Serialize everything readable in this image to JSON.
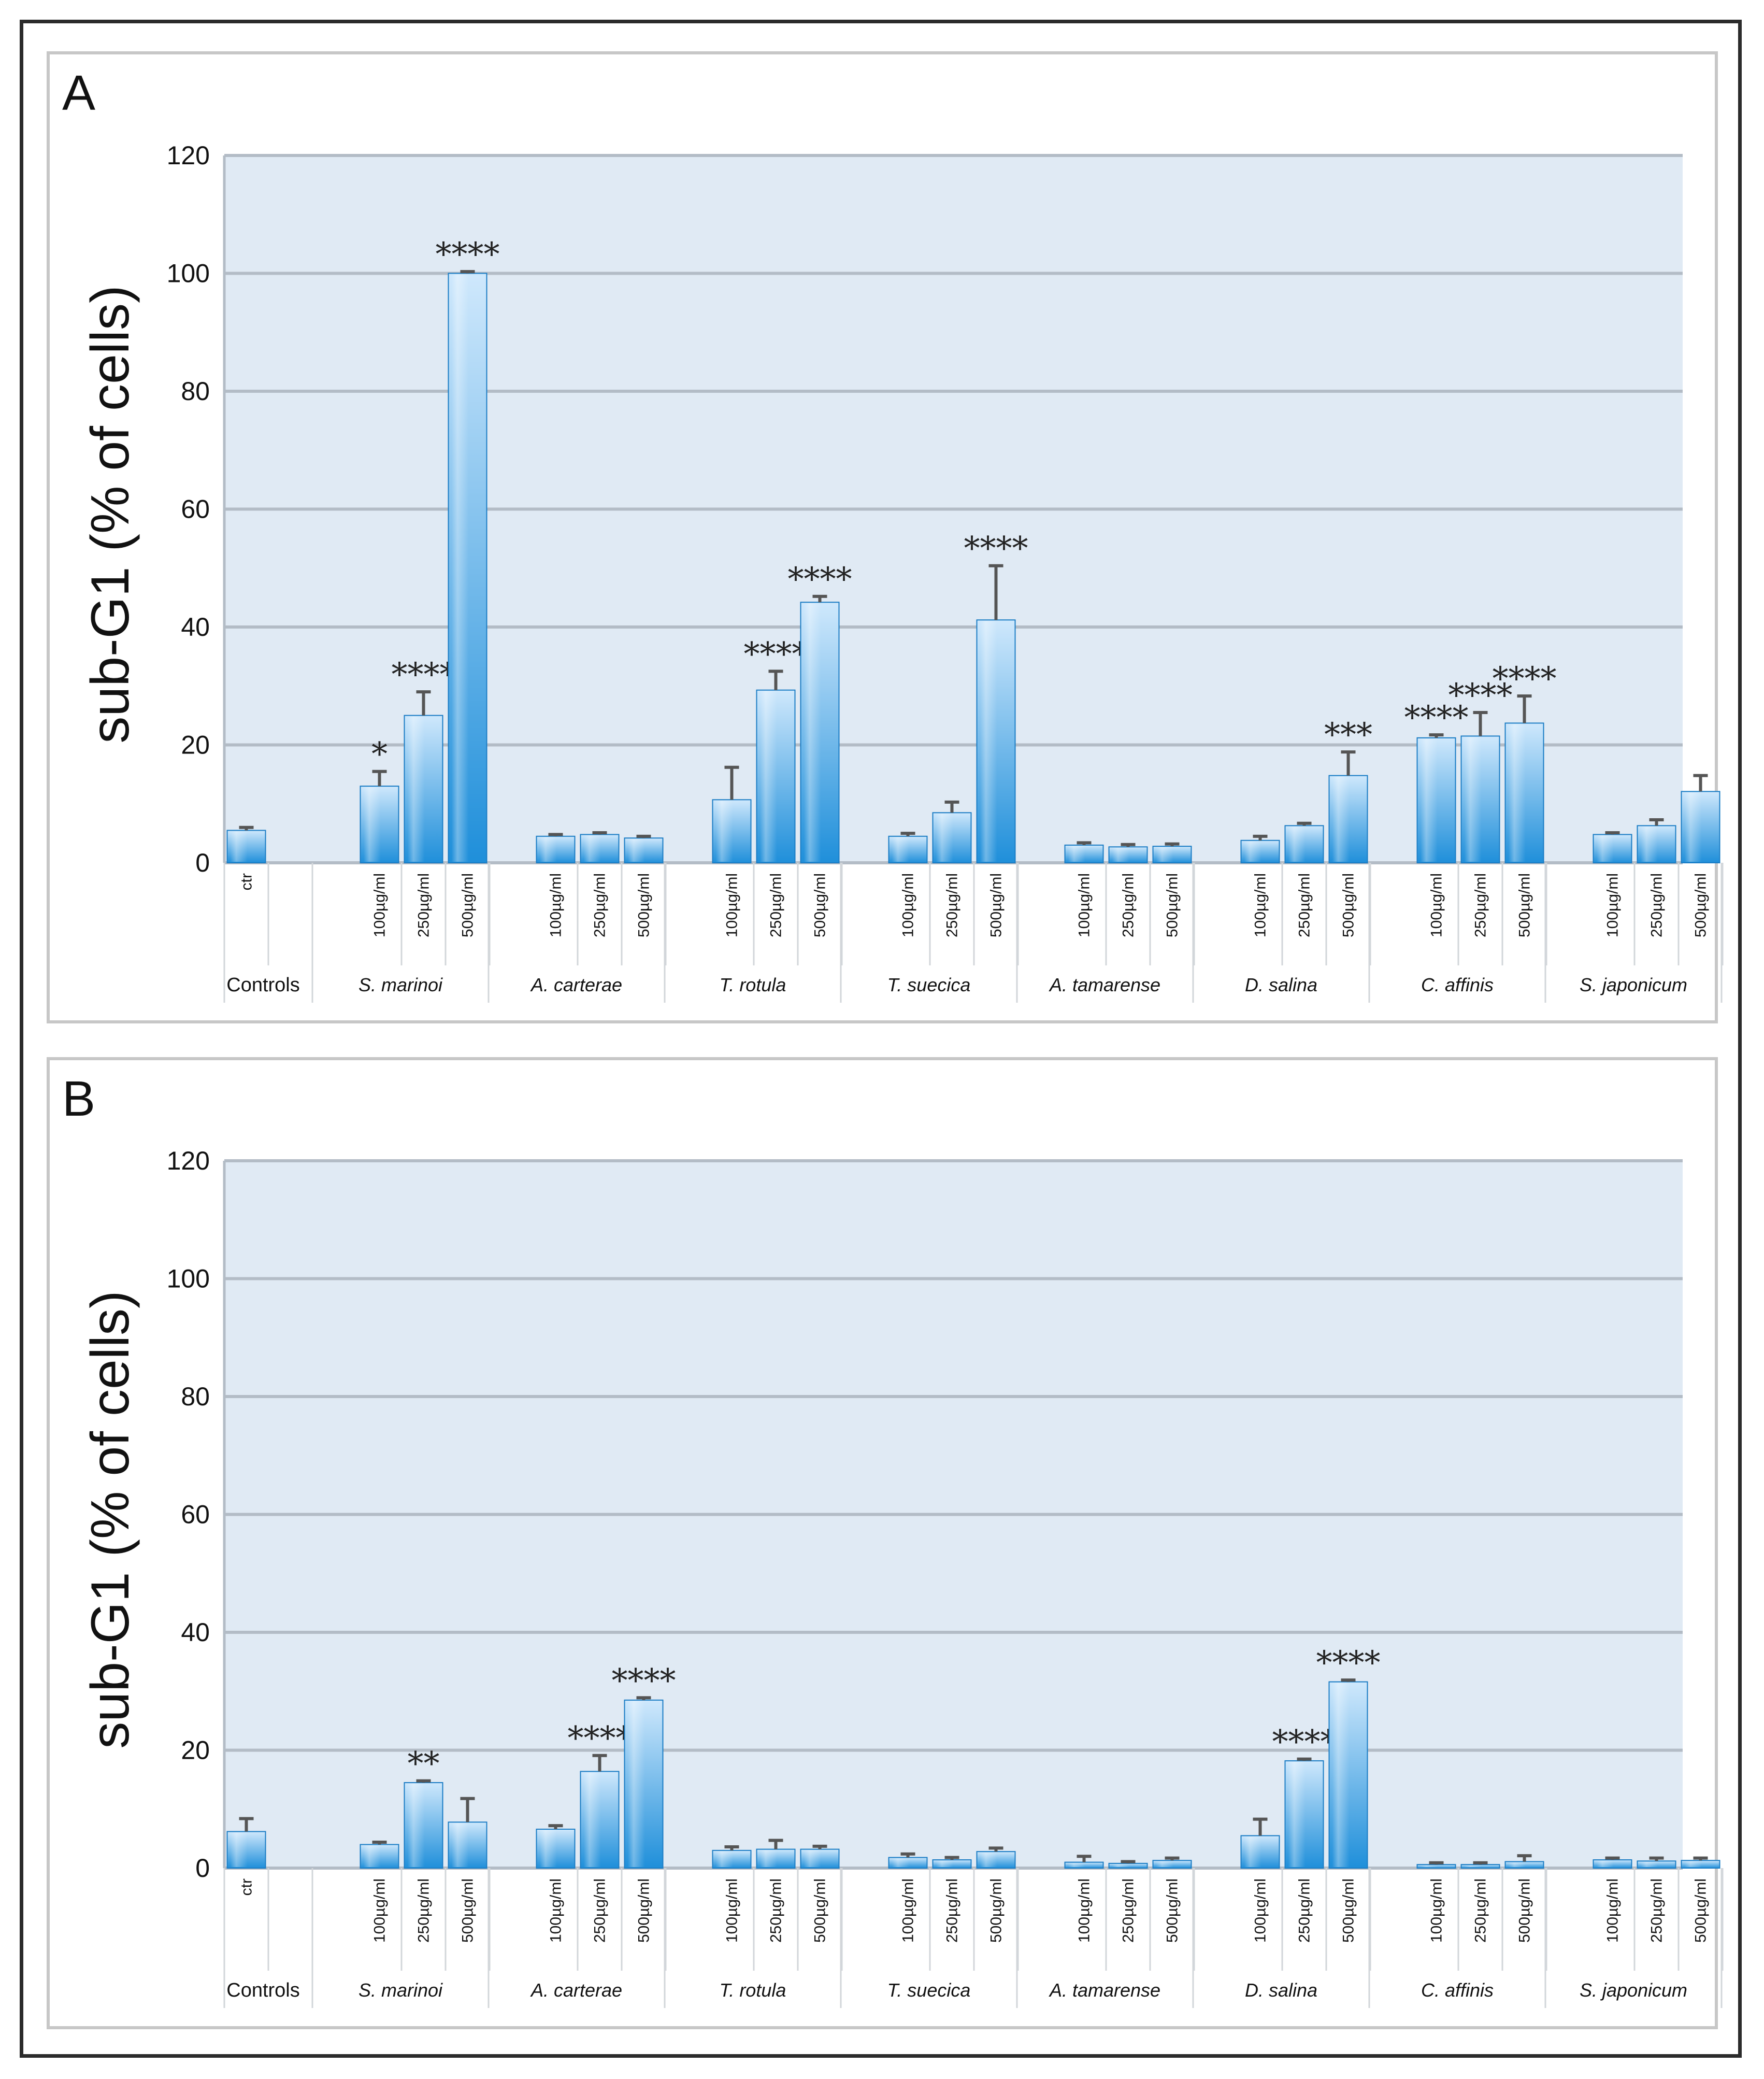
{
  "colors": {
    "plot_bg": "#e0eaf4",
    "grid": "#b3bcc6",
    "bar_light": "#cfe8fc",
    "bar_dark": "#1f8fda",
    "error_bar": "#555555",
    "panel_border": "#c7c7c7"
  },
  "chart_data": [
    {
      "panel": "A",
      "type": "bar",
      "ylabel": "sub-G1 (% of cells)",
      "ylim": [
        0,
        120
      ],
      "yticks": [
        "0",
        "20",
        "40",
        "60",
        "80",
        "100",
        "120"
      ],
      "grid": true,
      "groups": [
        {
          "name": "Controls",
          "doses": [
            "ctr"
          ],
          "values": [
            5.5
          ],
          "errors": [
            0.5
          ],
          "sig": [
            ""
          ]
        },
        {
          "name": "S. marinoi",
          "doses": [
            "100µg/ml",
            "250µg/ml",
            "500µg/ml"
          ],
          "values": [
            13,
            25,
            100
          ],
          "errors": [
            2.5,
            4,
            0.3
          ],
          "sig": [
            "*",
            "****",
            "****"
          ]
        },
        {
          "name": "A. carterae",
          "doses": [
            "100µg/ml",
            "250µg/ml",
            "500µg/ml"
          ],
          "values": [
            4.5,
            4.8,
            4.2
          ],
          "errors": [
            0.3,
            0.3,
            0.3
          ],
          "sig": [
            "",
            "",
            ""
          ]
        },
        {
          "name": "T. rotula",
          "doses": [
            "100µg/ml",
            "250µg/ml",
            "500µg/ml"
          ],
          "values": [
            10.7,
            29.3,
            44.2
          ],
          "errors": [
            5.5,
            3.2,
            1
          ],
          "sig": [
            "",
            "****",
            "****"
          ]
        },
        {
          "name": "T. suecica",
          "doses": [
            "100µg/ml",
            "250µg/ml",
            "500µg/ml"
          ],
          "values": [
            4.5,
            8.5,
            41.2
          ],
          "errors": [
            0.5,
            1.8,
            9.2
          ],
          "sig": [
            "",
            "",
            "****"
          ]
        },
        {
          "name": "A. tamarense",
          "doses": [
            "100µg/ml",
            "250µg/ml",
            "500µg/ml"
          ],
          "values": [
            3,
            2.7,
            2.8
          ],
          "errors": [
            0.4,
            0.4,
            0.4
          ],
          "sig": [
            "",
            "",
            ""
          ]
        },
        {
          "name": "D. salina",
          "doses": [
            "100µg/ml",
            "250µg/ml",
            "500µg/ml"
          ],
          "values": [
            3.8,
            6.3,
            14.8
          ],
          "errors": [
            0.7,
            0.4,
            4
          ],
          "sig": [
            "",
            "",
            "***"
          ]
        },
        {
          "name": "C. affinis",
          "doses": [
            "100µg/ml",
            "250µg/ml",
            "500µg/ml"
          ],
          "values": [
            21.2,
            21.5,
            23.7
          ],
          "errors": [
            0.5,
            4,
            4.6
          ],
          "sig": [
            "****",
            "****",
            "****"
          ]
        },
        {
          "name": "S. japonicum",
          "doses": [
            "100µg/ml",
            "250µg/ml",
            "500µg/ml"
          ],
          "values": [
            4.8,
            6.3,
            12.1
          ],
          "errors": [
            0.3,
            1,
            2.7
          ],
          "sig": [
            "",
            "",
            ""
          ]
        }
      ]
    },
    {
      "panel": "B",
      "type": "bar",
      "ylabel": "sub-G1 (% of cells)",
      "ylim": [
        0,
        120
      ],
      "yticks": [
        "0",
        "20",
        "40",
        "60",
        "80",
        "100",
        "120"
      ],
      "grid": true,
      "groups": [
        {
          "name": "Controls",
          "doses": [
            "ctr"
          ],
          "values": [
            6.2
          ],
          "errors": [
            2.2
          ],
          "sig": [
            ""
          ]
        },
        {
          "name": "S. marinoi",
          "doses": [
            "100µg/ml",
            "250µg/ml",
            "500µg/ml"
          ],
          "values": [
            4,
            14.5,
            7.8
          ],
          "errors": [
            0.4,
            0.3,
            4
          ],
          "sig": [
            "",
            "**",
            ""
          ]
        },
        {
          "name": "A. carterae",
          "doses": [
            "100µg/ml",
            "250µg/ml",
            "500µg/ml"
          ],
          "values": [
            6.6,
            16.4,
            28.5
          ],
          "errors": [
            0.6,
            2.7,
            0.4
          ],
          "sig": [
            "",
            "****",
            "****"
          ]
        },
        {
          "name": "T. rotula",
          "doses": [
            "100µg/ml",
            "250µg/ml",
            "500µg/ml"
          ],
          "values": [
            3,
            3.2,
            3.2
          ],
          "errors": [
            0.6,
            1.5,
            0.5
          ],
          "sig": [
            "",
            "",
            ""
          ]
        },
        {
          "name": "T. suecica",
          "doses": [
            "100µg/ml",
            "250µg/ml",
            "500µg/ml"
          ],
          "values": [
            1.8,
            1.4,
            2.8
          ],
          "errors": [
            0.6,
            0.4,
            0.6
          ],
          "sig": [
            "",
            "",
            ""
          ]
        },
        {
          "name": "A. tamarense",
          "doses": [
            "100µg/ml",
            "250µg/ml",
            "500µg/ml"
          ],
          "values": [
            1,
            0.8,
            1.3
          ],
          "errors": [
            1,
            0.3,
            0.4
          ],
          "sig": [
            "",
            "",
            ""
          ]
        },
        {
          "name": "D. salina",
          "doses": [
            "100µg/ml",
            "250µg/ml",
            "500µg/ml"
          ],
          "values": [
            5.5,
            18.2,
            31.6
          ],
          "errors": [
            2.8,
            0.3,
            0.3
          ],
          "sig": [
            "",
            "****",
            "****"
          ]
        },
        {
          "name": "C. affinis",
          "doses": [
            "100µg/ml",
            "250µg/ml",
            "500µg/ml"
          ],
          "values": [
            0.6,
            0.6,
            1.1
          ],
          "errors": [
            0.3,
            0.3,
            1
          ],
          "sig": [
            "",
            "",
            ""
          ]
        },
        {
          "name": "S. japonicum",
          "doses": [
            "100µg/ml",
            "250µg/ml",
            "500µg/ml"
          ],
          "values": [
            1.4,
            1.2,
            1.3
          ],
          "errors": [
            0.3,
            0.5,
            0.4
          ],
          "sig": [
            "",
            "",
            ""
          ]
        }
      ]
    }
  ]
}
